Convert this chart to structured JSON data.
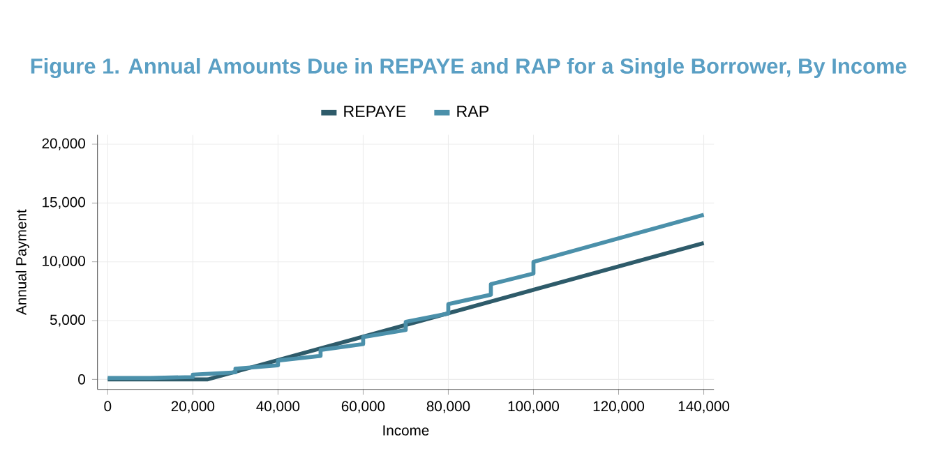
{
  "chart_data": {
    "type": "line",
    "title": "Figure 1. Annual Amounts Due in REPAYE and RAP for a Single Borrower, By Income",
    "xlabel": "Income",
    "ylabel": "Annual Payment",
    "series": [
      {
        "name": "REPAYE",
        "color": "#2e5b6a",
        "x": [
          0,
          23500,
          140000
        ],
        "values": [
          0,
          0,
          11600
        ]
      },
      {
        "name": "RAP",
        "color": "#4b90aa",
        "x": [
          0,
          10000,
          20000,
          20000,
          30000,
          30000,
          40000,
          40000,
          50000,
          50000,
          60000,
          60000,
          70000,
          70000,
          80000,
          80000,
          90000,
          90000,
          100000,
          100000,
          140000
        ],
        "values": [
          120,
          120,
          200,
          400,
          600,
          900,
          1200,
          1600,
          2000,
          2500,
          3000,
          3600,
          4200,
          4900,
          5600,
          6400,
          7200,
          8100,
          9000,
          10000,
          14000
        ]
      }
    ],
    "xlim": [
      -2400,
      142400
    ],
    "ylim": [
      -850,
      20800
    ],
    "xticks": [
      {
        "value": 0,
        "label": "0"
      },
      {
        "value": 20000,
        "label": "20,000"
      },
      {
        "value": 40000,
        "label": "40,000"
      },
      {
        "value": 60000,
        "label": "60,000"
      },
      {
        "value": 80000,
        "label": "80,000"
      },
      {
        "value": 100000,
        "label": "100,000"
      },
      {
        "value": 120000,
        "label": "120,000"
      },
      {
        "value": 140000,
        "label": "140,000"
      }
    ],
    "yticks": [
      {
        "value": 0,
        "label": "0"
      },
      {
        "value": 5000,
        "label": "5,000"
      },
      {
        "value": 10000,
        "label": "10,000"
      },
      {
        "value": 15000,
        "label": "15,000"
      },
      {
        "value": 20000,
        "label": "20,000"
      }
    ],
    "grid": true,
    "legend": "top",
    "line_style": "solid"
  }
}
